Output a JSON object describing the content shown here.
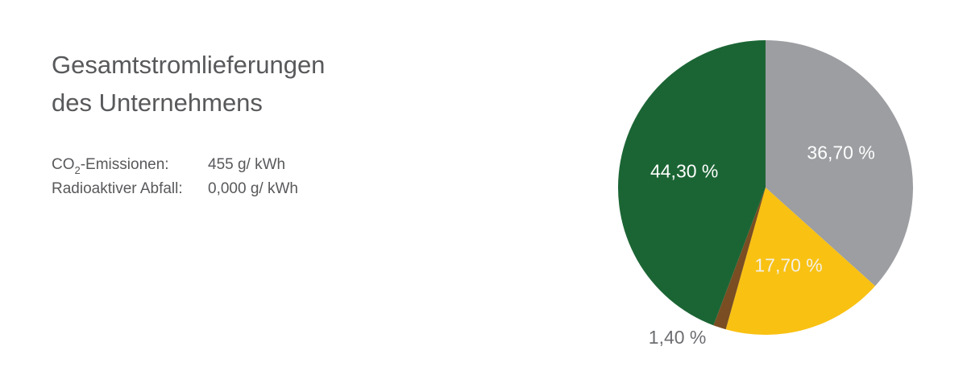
{
  "chart_data": {
    "type": "pie",
    "title": [
      "Gesamtstromlieferungen",
      "des Unternehmens"
    ],
    "info": [
      {
        "label": [
          "CO",
          "2",
          "-Emissionen:"
        ],
        "value": "455 g/ kWh"
      },
      {
        "label": [
          "Radioaktiver Abfall:"
        ],
        "value": "0,000 g/ kWh"
      }
    ],
    "values": [
      36.7,
      17.7,
      1.4,
      44.3
    ],
    "value_labels": [
      "36,70 %",
      "17,70 %",
      "1,40 %",
      "44,30 %"
    ],
    "colors": [
      "#9d9ea2",
      "#f9c112",
      "#7a4e22",
      "#1b6534"
    ],
    "label_colors": [
      "#ffffff",
      "#f3f0e6",
      "#6d6e71",
      "#ffffff"
    ]
  }
}
